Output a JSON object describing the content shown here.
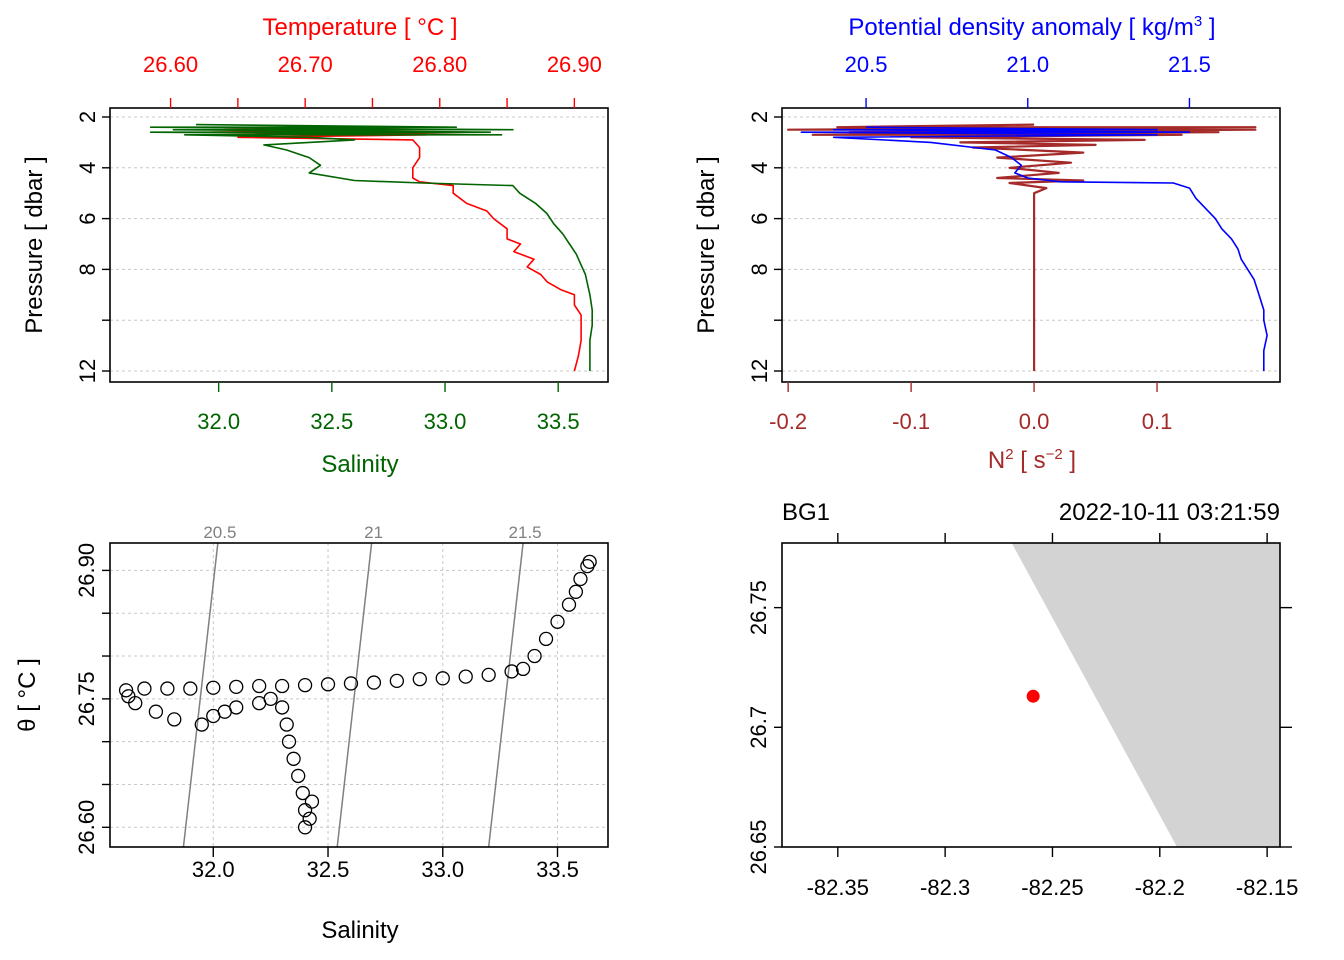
{
  "chart_data": [
    {
      "type": "line",
      "panel": "profile-temperature-salinity",
      "top_axis": {
        "label": "Temperature [ °C ]",
        "color": "#ff0000",
        "range": [
          26.555,
          26.925
        ],
        "ticks": [
          26.6,
          26.65,
          26.7,
          26.75,
          26.8,
          26.85,
          26.9
        ],
        "tick_labels": [
          "26.60",
          "26.70",
          "26.80",
          "26.90"
        ]
      },
      "bottom_axis": {
        "label": "Salinity",
        "color": "#006400",
        "range": [
          31.52,
          33.72
        ],
        "ticks": [
          32.0,
          32.5,
          33.0,
          33.5
        ],
        "tick_labels": [
          "32.0",
          "32.5",
          "33.0",
          "33.5"
        ]
      },
      "y_axis": {
        "label": "Pressure [ dbar ]",
        "range": [
          12.0,
          2.0
        ],
        "reversed": true,
        "ticks": [
          2,
          4,
          6,
          8,
          10,
          12
        ],
        "tick_labels": [
          "2",
          "4",
          "6",
          "8",
          "",
          "12"
        ]
      },
      "series": [
        {
          "name": "Temperature",
          "color": "#ff0000",
          "p": [
            2.4,
            2.5,
            2.5,
            2.6,
            2.6,
            2.7,
            2.7,
            2.8,
            2.9,
            3.2,
            3.6,
            4.0,
            4.4,
            4.55,
            4.7,
            5.0,
            5.4,
            5.7,
            6.0,
            6.4,
            6.8,
            7.0,
            7.3,
            7.6,
            7.9,
            8.2,
            8.5,
            8.8,
            9.0,
            9.4,
            9.8,
            10.2,
            10.8,
            11.4,
            12.0
          ],
          "values": [
            26.78,
            26.64,
            26.78,
            26.63,
            26.82,
            26.64,
            26.79,
            26.65,
            26.78,
            26.785,
            26.785,
            26.78,
            26.78,
            26.785,
            26.81,
            26.81,
            26.82,
            26.835,
            26.84,
            26.85,
            26.85,
            26.86,
            26.855,
            26.87,
            26.865,
            26.875,
            26.88,
            26.89,
            26.9,
            26.9,
            26.905,
            26.905,
            26.905,
            26.903,
            26.9
          ]
        },
        {
          "name": "Salinity",
          "color": "#006400",
          "p": [
            2.3,
            2.4,
            2.4,
            2.5,
            2.5,
            2.6,
            2.6,
            2.7,
            2.7,
            2.8,
            2.9,
            3.1,
            3.3,
            3.6,
            3.9,
            4.2,
            4.5,
            4.6,
            4.7,
            5.0,
            5.4,
            5.8,
            6.2,
            6.6,
            7.0,
            7.4,
            7.8,
            8.2,
            8.6,
            9.0,
            9.6,
            10.2,
            10.8,
            11.4,
            12.0
          ],
          "values": [
            31.9,
            33.05,
            31.7,
            33.3,
            31.8,
            33.2,
            31.7,
            33.25,
            31.85,
            32.4,
            32.6,
            32.2,
            32.3,
            32.4,
            32.45,
            32.4,
            32.6,
            32.9,
            33.3,
            33.33,
            33.4,
            33.45,
            33.48,
            33.52,
            33.55,
            33.58,
            33.6,
            33.62,
            33.63,
            33.64,
            33.65,
            33.65,
            33.64,
            33.64,
            33.64
          ]
        }
      ]
    },
    {
      "type": "line",
      "panel": "profile-density-n2",
      "top_axis": {
        "label": "Potential density anomaly [ kg/m³ ]",
        "color": "#0000ff",
        "range": [
          20.24,
          21.78
        ],
        "ticks": [
          20.5,
          21.0,
          21.5
        ],
        "tick_labels": [
          "20.5",
          "21.0",
          "21.5"
        ]
      },
      "bottom_axis": {
        "label": "N² [ s⁻² ]",
        "color": "#a52a2a",
        "range": [
          -0.205,
          0.2
        ],
        "ticks": [
          -0.2,
          -0.1,
          0.0,
          0.1
        ],
        "tick_labels": [
          "-0.2",
          "-0.1",
          "0.0",
          "0.1"
        ]
      },
      "y_axis": {
        "label": "Pressure [ dbar ]",
        "range": [
          12.0,
          2.0
        ],
        "reversed": true,
        "ticks": [
          2,
          4,
          6,
          8,
          10,
          12
        ],
        "tick_labels": [
          "2",
          "4",
          "6",
          "8",
          "",
          "12"
        ]
      },
      "series": [
        {
          "name": "Potential density anomaly",
          "color": "#0000ff",
          "p": [
            2.4,
            2.5,
            2.5,
            2.6,
            2.6,
            2.7,
            2.8,
            3.0,
            3.3,
            3.6,
            3.9,
            4.2,
            4.4,
            4.55,
            4.6,
            4.8,
            5.2,
            5.6,
            6.0,
            6.4,
            6.8,
            7.2,
            7.6,
            8.0,
            8.4,
            8.8,
            9.2,
            9.6,
            10.0,
            10.6,
            11.2,
            12.0
          ],
          "values": [
            20.5,
            21.4,
            20.4,
            21.5,
            20.3,
            21.4,
            20.4,
            20.7,
            20.9,
            20.95,
            20.98,
            20.96,
            21.0,
            21.1,
            21.45,
            21.5,
            21.52,
            21.55,
            21.58,
            21.6,
            21.63,
            21.65,
            21.66,
            21.68,
            21.7,
            21.71,
            21.72,
            21.73,
            21.73,
            21.74,
            21.73,
            21.73
          ]
        },
        {
          "name": "N2",
          "color": "#a52a2a",
          "p": [
            2.3,
            2.4,
            2.4,
            2.5,
            2.5,
            2.6,
            2.6,
            2.7,
            2.7,
            2.8,
            2.9,
            3.0,
            3.1,
            3.2,
            3.4,
            3.6,
            3.8,
            4.0,
            4.2,
            4.4,
            4.5,
            4.6,
            4.8,
            5.0,
            5.5,
            6.0,
            7.0,
            8.0,
            9.0,
            10.0,
            11.0,
            12.0
          ],
          "values": [
            0.0,
            -0.16,
            0.18,
            -0.2,
            0.18,
            -0.15,
            0.15,
            -0.18,
            0.12,
            -0.1,
            0.09,
            -0.06,
            0.05,
            -0.05,
            0.04,
            -0.03,
            0.03,
            -0.02,
            0.02,
            -0.03,
            0.04,
            -0.02,
            0.01,
            0.0,
            0.0,
            0.0,
            0.0,
            0.0,
            0.0,
            0.0,
            0.0,
            0.0
          ]
        }
      ]
    },
    {
      "type": "scatter",
      "panel": "ts-diagram",
      "xlabel": "Salinity",
      "ylabel": "θ [ °C ]",
      "xlim": [
        31.55,
        33.72
      ],
      "ylim": [
        26.577,
        26.932
      ],
      "x_ticks": [
        32.0,
        32.5,
        33.0,
        33.5
      ],
      "x_tick_labels": [
        "32.0",
        "32.5",
        "33.0",
        "33.5"
      ],
      "y_ticks": [
        26.6,
        26.65,
        26.7,
        26.75,
        26.8,
        26.85,
        26.9
      ],
      "y_tick_labels": [
        "26.60",
        "",
        "",
        "26.75",
        "",
        "",
        "26.90"
      ],
      "isopycnals": [
        {
          "label": "20.5",
          "s_bottom": 31.87,
          "s_top": 32.02
        },
        {
          "label": "21",
          "s_bottom": 32.54,
          "s_top": 32.69
        },
        {
          "label": "21.5",
          "s_bottom": 33.2,
          "s_top": 33.35
        }
      ],
      "points": [
        [
          31.62,
          26.76
        ],
        [
          31.63,
          26.753
        ],
        [
          31.66,
          26.745
        ],
        [
          31.7,
          26.762
        ],
        [
          31.75,
          26.735
        ],
        [
          31.83,
          26.726
        ],
        [
          31.8,
          26.762
        ],
        [
          31.9,
          26.762
        ],
        [
          32.0,
          26.763
        ],
        [
          32.1,
          26.764
        ],
        [
          32.2,
          26.765
        ],
        [
          32.3,
          26.765
        ],
        [
          32.4,
          26.766
        ],
        [
          32.5,
          26.767
        ],
        [
          32.6,
          26.768
        ],
        [
          32.7,
          26.769
        ],
        [
          32.8,
          26.771
        ],
        [
          32.9,
          26.773
        ],
        [
          33.0,
          26.774
        ],
        [
          33.1,
          26.776
        ],
        [
          33.2,
          26.778
        ],
        [
          33.3,
          26.782
        ],
        [
          33.35,
          26.785
        ],
        [
          31.95,
          26.72
        ],
        [
          32.0,
          26.73
        ],
        [
          32.05,
          26.735
        ],
        [
          32.1,
          26.74
        ],
        [
          32.2,
          26.745
        ],
        [
          32.25,
          26.75
        ],
        [
          32.3,
          26.74
        ],
        [
          32.32,
          26.72
        ],
        [
          32.33,
          26.7
        ],
        [
          32.35,
          26.68
        ],
        [
          32.37,
          26.66
        ],
        [
          32.39,
          26.64
        ],
        [
          32.4,
          26.62
        ],
        [
          32.4,
          26.6
        ],
        [
          32.42,
          26.61
        ],
        [
          32.43,
          26.63
        ],
        [
          33.4,
          26.8
        ],
        [
          33.45,
          26.82
        ],
        [
          33.5,
          26.84
        ],
        [
          33.55,
          26.86
        ],
        [
          33.58,
          26.875
        ],
        [
          33.6,
          26.89
        ],
        [
          33.63,
          26.905
        ],
        [
          33.64,
          26.91
        ]
      ]
    },
    {
      "type": "map",
      "panel": "station-map",
      "station": "BG1",
      "datetime": "2022-10-11 03:21:59",
      "xlim": [
        -82.376,
        -82.144
      ],
      "ylim": [
        26.65,
        26.777
      ],
      "x_ticks": [
        -82.35,
        -82.3,
        -82.25,
        -82.2,
        -82.15
      ],
      "x_tick_labels": [
        "-82.35",
        "-82.3",
        "-82.25",
        "-82.2",
        "-82.15"
      ],
      "y_ticks": [
        26.65,
        26.7,
        26.75
      ],
      "y_tick_labels": [
        "26.65",
        "26.7",
        "26.75"
      ],
      "station_point": {
        "lon": -82.259,
        "lat": 26.713,
        "color": "#ff0000"
      },
      "land_polygon": [
        [
          -82.269,
          26.777
        ],
        [
          -82.144,
          26.777
        ],
        [
          -82.144,
          26.65
        ],
        [
          -82.192,
          26.65
        ]
      ],
      "land_color": "#d3d3d3"
    }
  ]
}
